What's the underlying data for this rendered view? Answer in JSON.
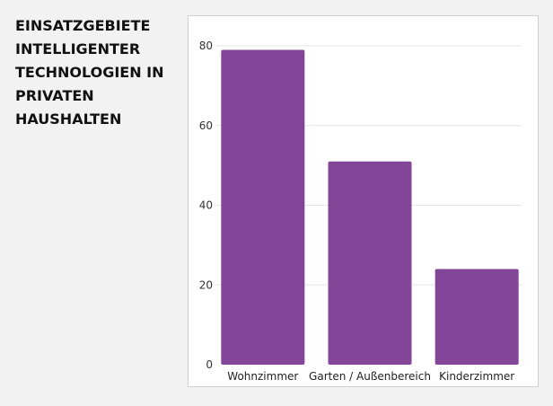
{
  "page": {
    "title": "EINSATZGEBIETE\nINTELLIGENTER\nTECHNOLOGIEN IN\nPRIVATEN\nHAUSHALTEN"
  },
  "colors": {
    "bar": "#824598",
    "grid": "#e6e6e6",
    "background": "#f2f2f2",
    "panel": "#ffffff"
  },
  "chart_data": {
    "type": "bar",
    "title": "EINSATZGEBIETE INTELLIGENTER TECHNOLOGIEN IN PRIVATEN HAUSHALTEN",
    "categories": [
      "Wohnzimmer",
      "Garten / Außenbereich",
      "Kinderzimmer"
    ],
    "values": [
      79,
      51,
      24
    ],
    "xlabel": "",
    "ylabel": "",
    "ylim": [
      0,
      80
    ],
    "yticks": [
      0,
      20,
      40,
      60,
      80
    ],
    "grid": true,
    "legend": "none"
  }
}
